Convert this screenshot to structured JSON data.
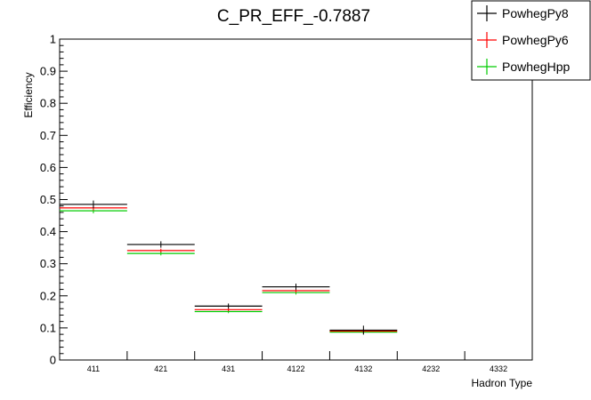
{
  "chart_data": {
    "type": "scatter",
    "title": "C_PR_EFF_-0.7887",
    "xlabel": "Hadron Type",
    "ylabel": "Efficiency",
    "ylim": [
      0,
      1
    ],
    "yticks": [
      "0",
      "0.1",
      "0.2",
      "0.3",
      "0.4",
      "0.5",
      "0.6",
      "0.7",
      "0.8",
      "0.9",
      "1"
    ],
    "categories": [
      "411",
      "421",
      "431",
      "4122",
      "4132",
      "4232",
      "4332"
    ],
    "grid": false,
    "legend_position": "top-right",
    "series": [
      {
        "name": "PowhegPy8",
        "color": "#000000",
        "values": [
          0.485,
          0.36,
          0.168,
          0.228,
          0.093,
          null,
          null
        ],
        "errors": [
          0.012,
          0.01,
          0.008,
          0.01,
          0.014,
          null,
          null
        ]
      },
      {
        "name": "PowhegPy6",
        "color": "#ff0000",
        "values": [
          0.474,
          0.341,
          0.157,
          0.216,
          0.09,
          null,
          null
        ],
        "errors": [
          0.008,
          0.006,
          0.005,
          0.006,
          0.006,
          null,
          null
        ]
      },
      {
        "name": "PowhegHpp",
        "color": "#00cc00",
        "values": [
          0.465,
          0.332,
          0.151,
          0.21,
          0.087,
          null,
          null
        ],
        "errors": [
          0.008,
          0.006,
          0.005,
          0.006,
          0.006,
          null,
          null
        ]
      }
    ]
  }
}
